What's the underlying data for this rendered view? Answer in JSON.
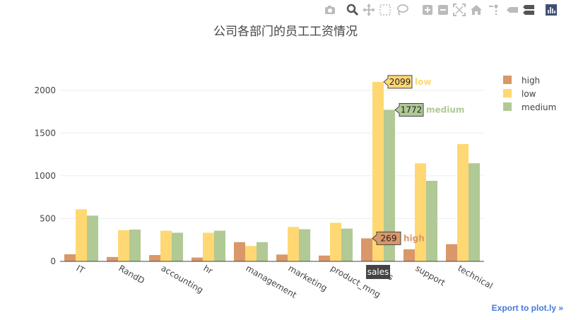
{
  "modebar": {
    "icons": [
      "camera-icon",
      "zoom-icon",
      "pan-icon",
      "box-select-icon",
      "lasso-icon",
      "zoom-in-icon",
      "zoom-out-icon",
      "autoscale-icon",
      "home-icon",
      "spike-lines-icon",
      "hover-closest-icon",
      "hover-compare-icon",
      "plotly-logo-icon"
    ]
  },
  "export_link": "Export to plot.ly »",
  "colors": {
    "high": "#d9976a",
    "low": "#ffd873",
    "medium": "#b0c995",
    "axis": "#444444",
    "grid": "#eeeeee"
  },
  "chart_data": {
    "type": "bar",
    "title": "公司各部门的员工工资情况",
    "categories": [
      "IT",
      "RandD",
      "accounting",
      "hr",
      "management",
      "marketing",
      "product_mng",
      "sales",
      "support",
      "technical"
    ],
    "series": [
      {
        "name": "high",
        "values": [
          83,
          51,
          74,
          45,
          225,
          80,
          68,
          269,
          141,
          201
        ]
      },
      {
        "name": "low",
        "values": [
          609,
          364,
          358,
          335,
          180,
          402,
          451,
          2099,
          1146,
          1372
        ]
      },
      {
        "name": "medium",
        "values": [
          535,
          372,
          335,
          359,
          225,
          376,
          383,
          1772,
          942,
          1147
        ]
      }
    ],
    "ylim": [
      0,
      2230
    ],
    "yticks": [
      0,
      500,
      1000,
      1500,
      2000
    ],
    "grid": true,
    "legend": "top-right",
    "hover": {
      "category": "sales",
      "labels": [
        {
          "series": "low",
          "value": "2099",
          "name": "low"
        },
        {
          "series": "medium",
          "value": "1772",
          "name": "medium"
        },
        {
          "series": "high",
          "value": "269",
          "name": "high"
        }
      ],
      "axis_label": "sales"
    }
  }
}
